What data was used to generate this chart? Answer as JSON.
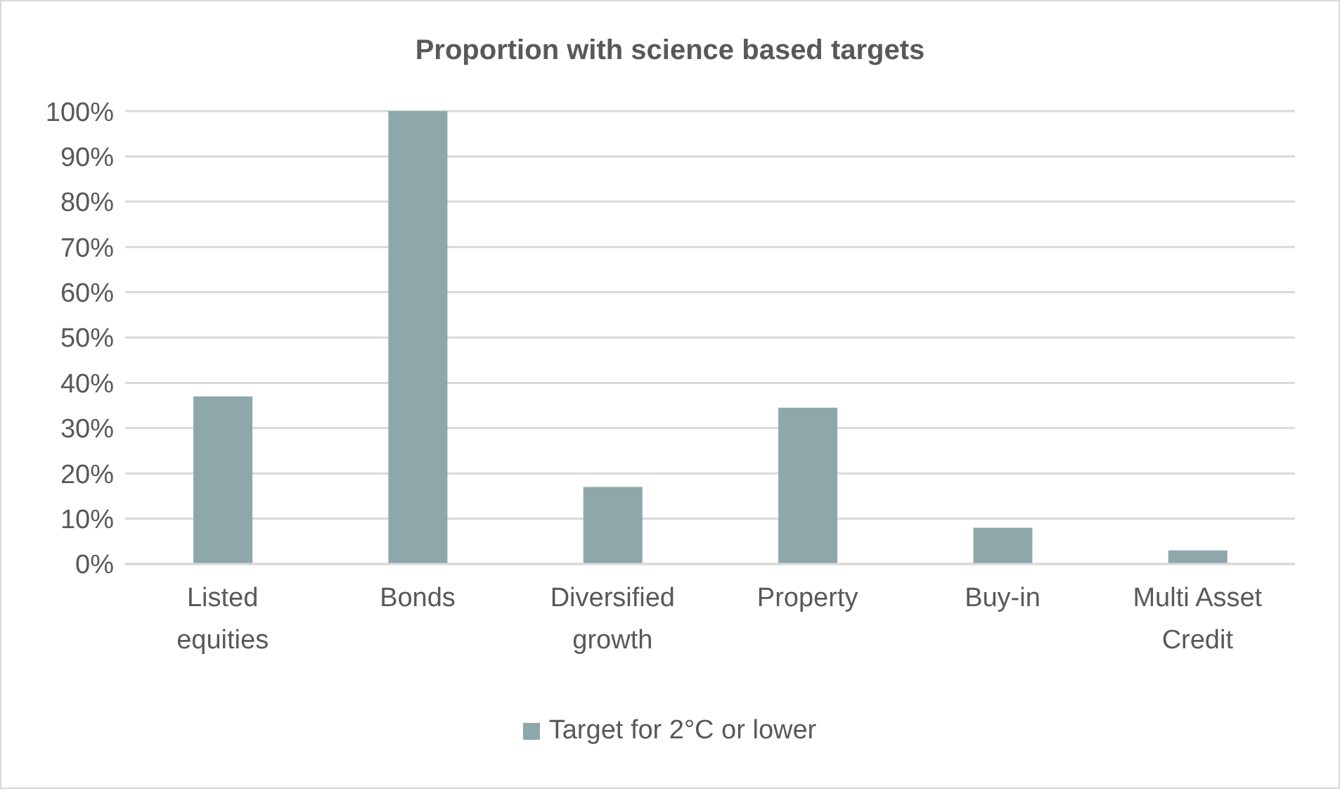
{
  "chart_data": {
    "type": "bar",
    "title": "Proportion with science based targets",
    "categories": [
      "Listed equities",
      "Bonds",
      "Diversified growth",
      "Property",
      "Buy-in",
      "Multi Asset Credit"
    ],
    "series": [
      {
        "name": "Target for 2°C or lower",
        "color": "#8ea7ab",
        "values": [
          37,
          100,
          17,
          34.5,
          8,
          3
        ]
      }
    ],
    "ylim": [
      0,
      100
    ],
    "yticks": [
      {
        "value": 0,
        "label": "0%"
      },
      {
        "value": 10,
        "label": "10%"
      },
      {
        "value": 20,
        "label": "20%"
      },
      {
        "value": 30,
        "label": "30%"
      },
      {
        "value": 40,
        "label": "40%"
      },
      {
        "value": 50,
        "label": "50%"
      },
      {
        "value": 60,
        "label": "60%"
      },
      {
        "value": 70,
        "label": "70%"
      },
      {
        "value": 80,
        "label": "80%"
      },
      {
        "value": 90,
        "label": "90%"
      },
      {
        "value": 100,
        "label": "100%"
      }
    ],
    "grid": "y",
    "legend": "bottom"
  }
}
